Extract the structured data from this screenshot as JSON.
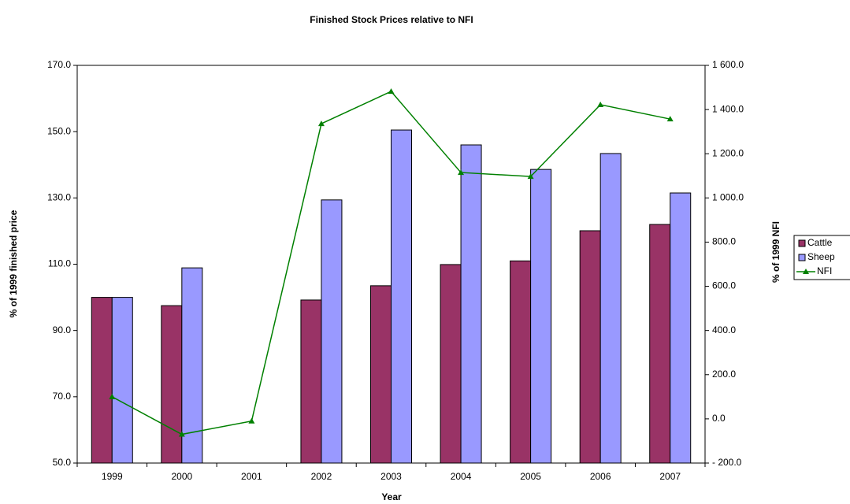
{
  "chart_data": {
    "type": "bar",
    "title": "Finished Stock Prices relative to NFI",
    "x_label": "Year",
    "y_label": "% of 1999 finished price",
    "y2_label": "% of 1999 NFI",
    "categories": [
      "1999",
      "2000",
      "2001",
      "2002",
      "2003",
      "2004",
      "2005",
      "2006",
      "2007"
    ],
    "series": [
      {
        "name": "Cattle",
        "color": "#993366",
        "type": "bar",
        "values": [
          100,
          97.5,
          null,
          99.2,
          103.5,
          109.9,
          111,
          120.1,
          122
        ]
      },
      {
        "name": "Sheep",
        "color": "#9999ff",
        "type": "bar",
        "values": [
          100,
          108.9,
          null,
          129.4,
          150.5,
          146,
          138.6,
          143.4,
          131.5
        ]
      },
      {
        "name": "NFI",
        "color": "#008000",
        "type": "line",
        "axis": "y2",
        "values": [
          100,
          -70,
          -10,
          1336,
          1482,
          1115,
          1097,
          1422,
          1357
        ]
      }
    ],
    "ylim": [
      50,
      170
    ],
    "yticks": [
      {
        "value": 50,
        "label": "50.0"
      },
      {
        "value": 70,
        "label": "70.0"
      },
      {
        "value": 90,
        "label": "90.0"
      },
      {
        "value": 110,
        "label": "110.0"
      },
      {
        "value": 130,
        "label": "130.0"
      },
      {
        "value": 150,
        "label": "150.0"
      },
      {
        "value": 170,
        "label": "170.0"
      }
    ],
    "y2lim": [
      -200,
      1600
    ],
    "y2ticks": [
      {
        "value": -200,
        "label": "- 200.0"
      },
      {
        "value": 0,
        "label": "0.0"
      },
      {
        "value": 200,
        "label": "200.0"
      },
      {
        "value": 400,
        "label": "400.0"
      },
      {
        "value": 600,
        "label": "600.0"
      },
      {
        "value": 800,
        "label": "800.0"
      },
      {
        "value": 1000,
        "label": "1 000.0"
      },
      {
        "value": 1200,
        "label": "1 200.0"
      },
      {
        "value": 1400,
        "label": "1 400.0"
      },
      {
        "value": 1600,
        "label": "1 600.0"
      }
    ],
    "grid": false,
    "legend": "right"
  }
}
